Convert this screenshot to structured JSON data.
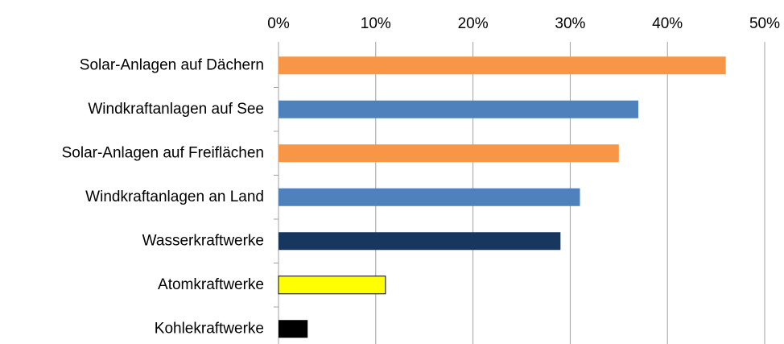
{
  "chart_data": {
    "type": "bar",
    "orientation": "horizontal",
    "categories": [
      "Solar-Anlagen auf Dächern",
      "Windkraftanlagen auf See",
      "Solar-Anlagen auf Freiflächen",
      "Windkraftanlagen an Land",
      "Wasserkraftwerke",
      "Atomkraftwerke",
      "Kohlekraftwerke"
    ],
    "values": [
      46,
      37,
      35,
      31,
      29,
      11,
      3
    ],
    "colors": [
      "#f79646",
      "#4f81bd",
      "#f79646",
      "#4f81bd",
      "#17375e",
      "#ffff00",
      "#000000"
    ],
    "xlim": [
      0,
      50
    ],
    "xticks": [
      {
        "value": 0,
        "label": "0%"
      },
      {
        "value": 10,
        "label": "10%"
      },
      {
        "value": 20,
        "label": "20%"
      },
      {
        "value": 30,
        "label": "30%"
      },
      {
        "value": 40,
        "label": "40%"
      },
      {
        "value": 50,
        "label": "50%"
      }
    ],
    "grid": true
  }
}
